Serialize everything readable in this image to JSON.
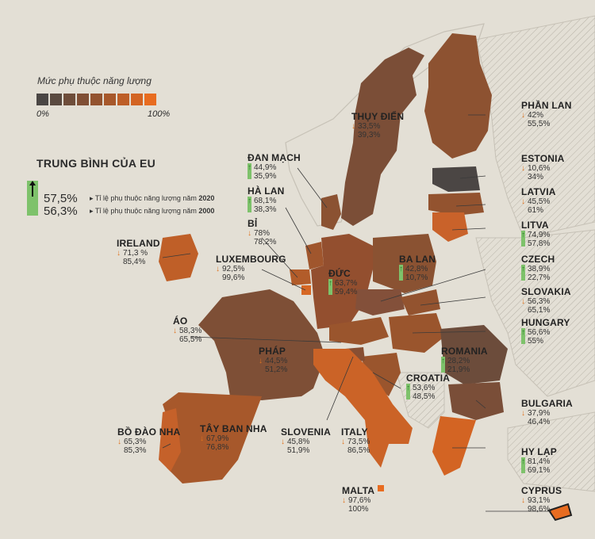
{
  "legend": {
    "title": "Mức phụ thuộc năng lượng",
    "min_label": "0%",
    "max_label": "100%",
    "colors": [
      "#4a4644",
      "#5a4a40",
      "#6e4d3a",
      "#804f35",
      "#93532f",
      "#a7582b",
      "#bd5e27",
      "#d36423",
      "#e86c20"
    ]
  },
  "eu_average": {
    "title": "TRUNG BÌNH CỦA EU",
    "value_2020": "57,5%",
    "desc_2020_prefix": "Tỉ lệ phụ thuộc năng lượng năm ",
    "year_2020": "2020",
    "value_2000": "56,3%",
    "desc_2000_prefix": "Tỉ lệ phụ thuộc năng lượng năm ",
    "year_2000": "2000"
  },
  "countries": [
    {
      "id": "sweden",
      "name": "THỤY ĐIỂN",
      "v2020": "33,5%",
      "v2000": "39,3%",
      "trend": "down"
    },
    {
      "id": "finland",
      "name": "PHẦN LAN",
      "v2020": "42%",
      "v2000": "55,5%",
      "trend": "down"
    },
    {
      "id": "denmark",
      "name": "ĐAN MẠCH",
      "v2020": "44,9%",
      "v2000": "35,9%",
      "trend": "up"
    },
    {
      "id": "estonia",
      "name": "ESTONIA",
      "v2020": "10,6%",
      "v2000": "34%",
      "trend": "down"
    },
    {
      "id": "netherlands",
      "name": "HÀ LAN",
      "v2020": "68,1%",
      "v2000": "38,3%",
      "trend": "up"
    },
    {
      "id": "latvia",
      "name": "LATVIA",
      "v2020": "45,5%",
      "v2000": "61%",
      "trend": "down"
    },
    {
      "id": "belgium",
      "name": "BỈ",
      "v2020": "78%",
      "v2000": "78,2%",
      "trend": "down"
    },
    {
      "id": "lithuania",
      "name": "LITVA",
      "v2020": "74,9%",
      "v2000": "57,8%",
      "trend": "up"
    },
    {
      "id": "ireland",
      "name": "IRELAND",
      "v2020": "71,3 %",
      "v2000": "85,4%",
      "trend": "down"
    },
    {
      "id": "luxembourg",
      "name": "LUXEMBOURG",
      "v2020": "92,5%",
      "v2000": "99,6%",
      "trend": "down"
    },
    {
      "id": "germany",
      "name": "ĐỨC",
      "v2020": "63,7%",
      "v2000": "59,4%",
      "trend": "up"
    },
    {
      "id": "poland",
      "name": "BA LAN",
      "v2020": "42,8%",
      "v2000": "10,7%",
      "trend": "up"
    },
    {
      "id": "czech",
      "name": "CZECH",
      "v2020": "38,9%",
      "v2000": "22,7%",
      "trend": "up"
    },
    {
      "id": "slovakia",
      "name": "SLOVAKIA",
      "v2020": "56,3%",
      "v2000": "65,1%",
      "trend": "down"
    },
    {
      "id": "austria",
      "name": "ÁO",
      "v2020": "58,3%",
      "v2000": "65,5%",
      "trend": "down"
    },
    {
      "id": "hungary",
      "name": "HUNGARY",
      "v2020": "56,6%",
      "v2000": "55%",
      "trend": "up"
    },
    {
      "id": "france",
      "name": "PHÁP",
      "v2020": "44,5%",
      "v2000": "51,2%",
      "trend": "down"
    },
    {
      "id": "romania",
      "name": "ROMANIA",
      "v2020": "28,2%",
      "v2000": "21,9%",
      "trend": "up"
    },
    {
      "id": "croatia",
      "name": "CROATIA",
      "v2020": "53,6%",
      "v2000": "48,5%",
      "trend": "up"
    },
    {
      "id": "bulgaria",
      "name": "BULGARIA",
      "v2020": "37,9%",
      "v2000": "46,4%",
      "trend": "down"
    },
    {
      "id": "portugal",
      "name": "BỒ ĐÀO NHA",
      "v2020": "65,3%",
      "v2000": "85,3%",
      "trend": "down"
    },
    {
      "id": "spain",
      "name": "TÂY BAN NHA",
      "v2020": "67,9%",
      "v2000": "76,8%",
      "trend": "down"
    },
    {
      "id": "slovenia",
      "name": "SLOVENIA",
      "v2020": "45,8%",
      "v2000": "51,9%",
      "trend": "down"
    },
    {
      "id": "italy",
      "name": "ITALY",
      "v2020": "73,5%",
      "v2000": "86,5%",
      "trend": "down"
    },
    {
      "id": "greece",
      "name": "HY LẠP",
      "v2020": "81,4%",
      "v2000": "69,1%",
      "trend": "up"
    },
    {
      "id": "malta",
      "name": "MALTA",
      "v2020": "97,6%",
      "v2000": "100%",
      "trend": "down"
    },
    {
      "id": "cyprus",
      "name": "CYPRUS",
      "v2020": "93,1%",
      "v2000": "98,6%",
      "trend": "down"
    }
  ]
}
